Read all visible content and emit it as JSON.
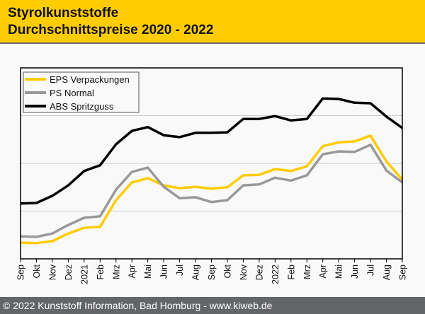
{
  "header": {
    "title_line1": "Styrolkunststoffe",
    "title_line2": "Durchschnittspreise 2020 - 2022"
  },
  "footer": {
    "text": "© 2022 Kunststoff Information, Bad Homburg - www.kiweb.de"
  },
  "colors": {
    "header_bg": "#ffcc00",
    "footer_bg": "#636569",
    "eps": "#ffcc00",
    "ps": "#999999",
    "abs": "#000000",
    "grid": "#cccccc"
  },
  "chart_data": {
    "type": "line",
    "title": "Styrolkunststoffe Durchschnittspreise 2020 - 2022",
    "xlabel": "",
    "ylabel": "",
    "y_units_note": "no y-axis tick labels shown; values in gridline units (gridlines at 1, 2, 3)",
    "ylim": [
      0,
      4
    ],
    "grid": true,
    "legend_position": "top-left",
    "categories": [
      "Sep",
      "Okt",
      "Nov",
      "Dez",
      "2021",
      "Feb",
      "Mrz",
      "Apr",
      "Mai",
      "Jun",
      "Jul",
      "Aug",
      "Sep",
      "Okt",
      "Nov",
      "Dez",
      "2022",
      "Feb",
      "Mrz",
      "Apr",
      "Mai",
      "Jun",
      "Jul",
      "Aug",
      "Sep"
    ],
    "series": [
      {
        "name": "EPS Verpackungen",
        "color": "#ffcc00",
        "values": [
          0.34,
          0.33,
          0.37,
          0.53,
          0.65,
          0.67,
          1.23,
          1.6,
          1.69,
          1.54,
          1.48,
          1.51,
          1.47,
          1.5,
          1.75,
          1.76,
          1.88,
          1.84,
          1.94,
          2.36,
          2.44,
          2.46,
          2.58,
          2.04,
          1.66
        ]
      },
      {
        "name": "PS Normal",
        "color": "#999999",
        "values": [
          0.47,
          0.46,
          0.53,
          0.71,
          0.86,
          0.89,
          1.45,
          1.82,
          1.91,
          1.51,
          1.27,
          1.29,
          1.19,
          1.23,
          1.54,
          1.56,
          1.7,
          1.64,
          1.75,
          2.19,
          2.25,
          2.24,
          2.39,
          1.85,
          1.6
        ]
      },
      {
        "name": "ABS Spritzguss",
        "color": "#000000",
        "values": [
          1.16,
          1.17,
          1.32,
          1.54,
          1.84,
          1.96,
          2.4,
          2.68,
          2.76,
          2.59,
          2.55,
          2.64,
          2.64,
          2.65,
          2.93,
          2.93,
          2.99,
          2.9,
          2.93,
          3.36,
          3.35,
          3.27,
          3.26,
          2.98,
          2.74
        ]
      }
    ]
  }
}
